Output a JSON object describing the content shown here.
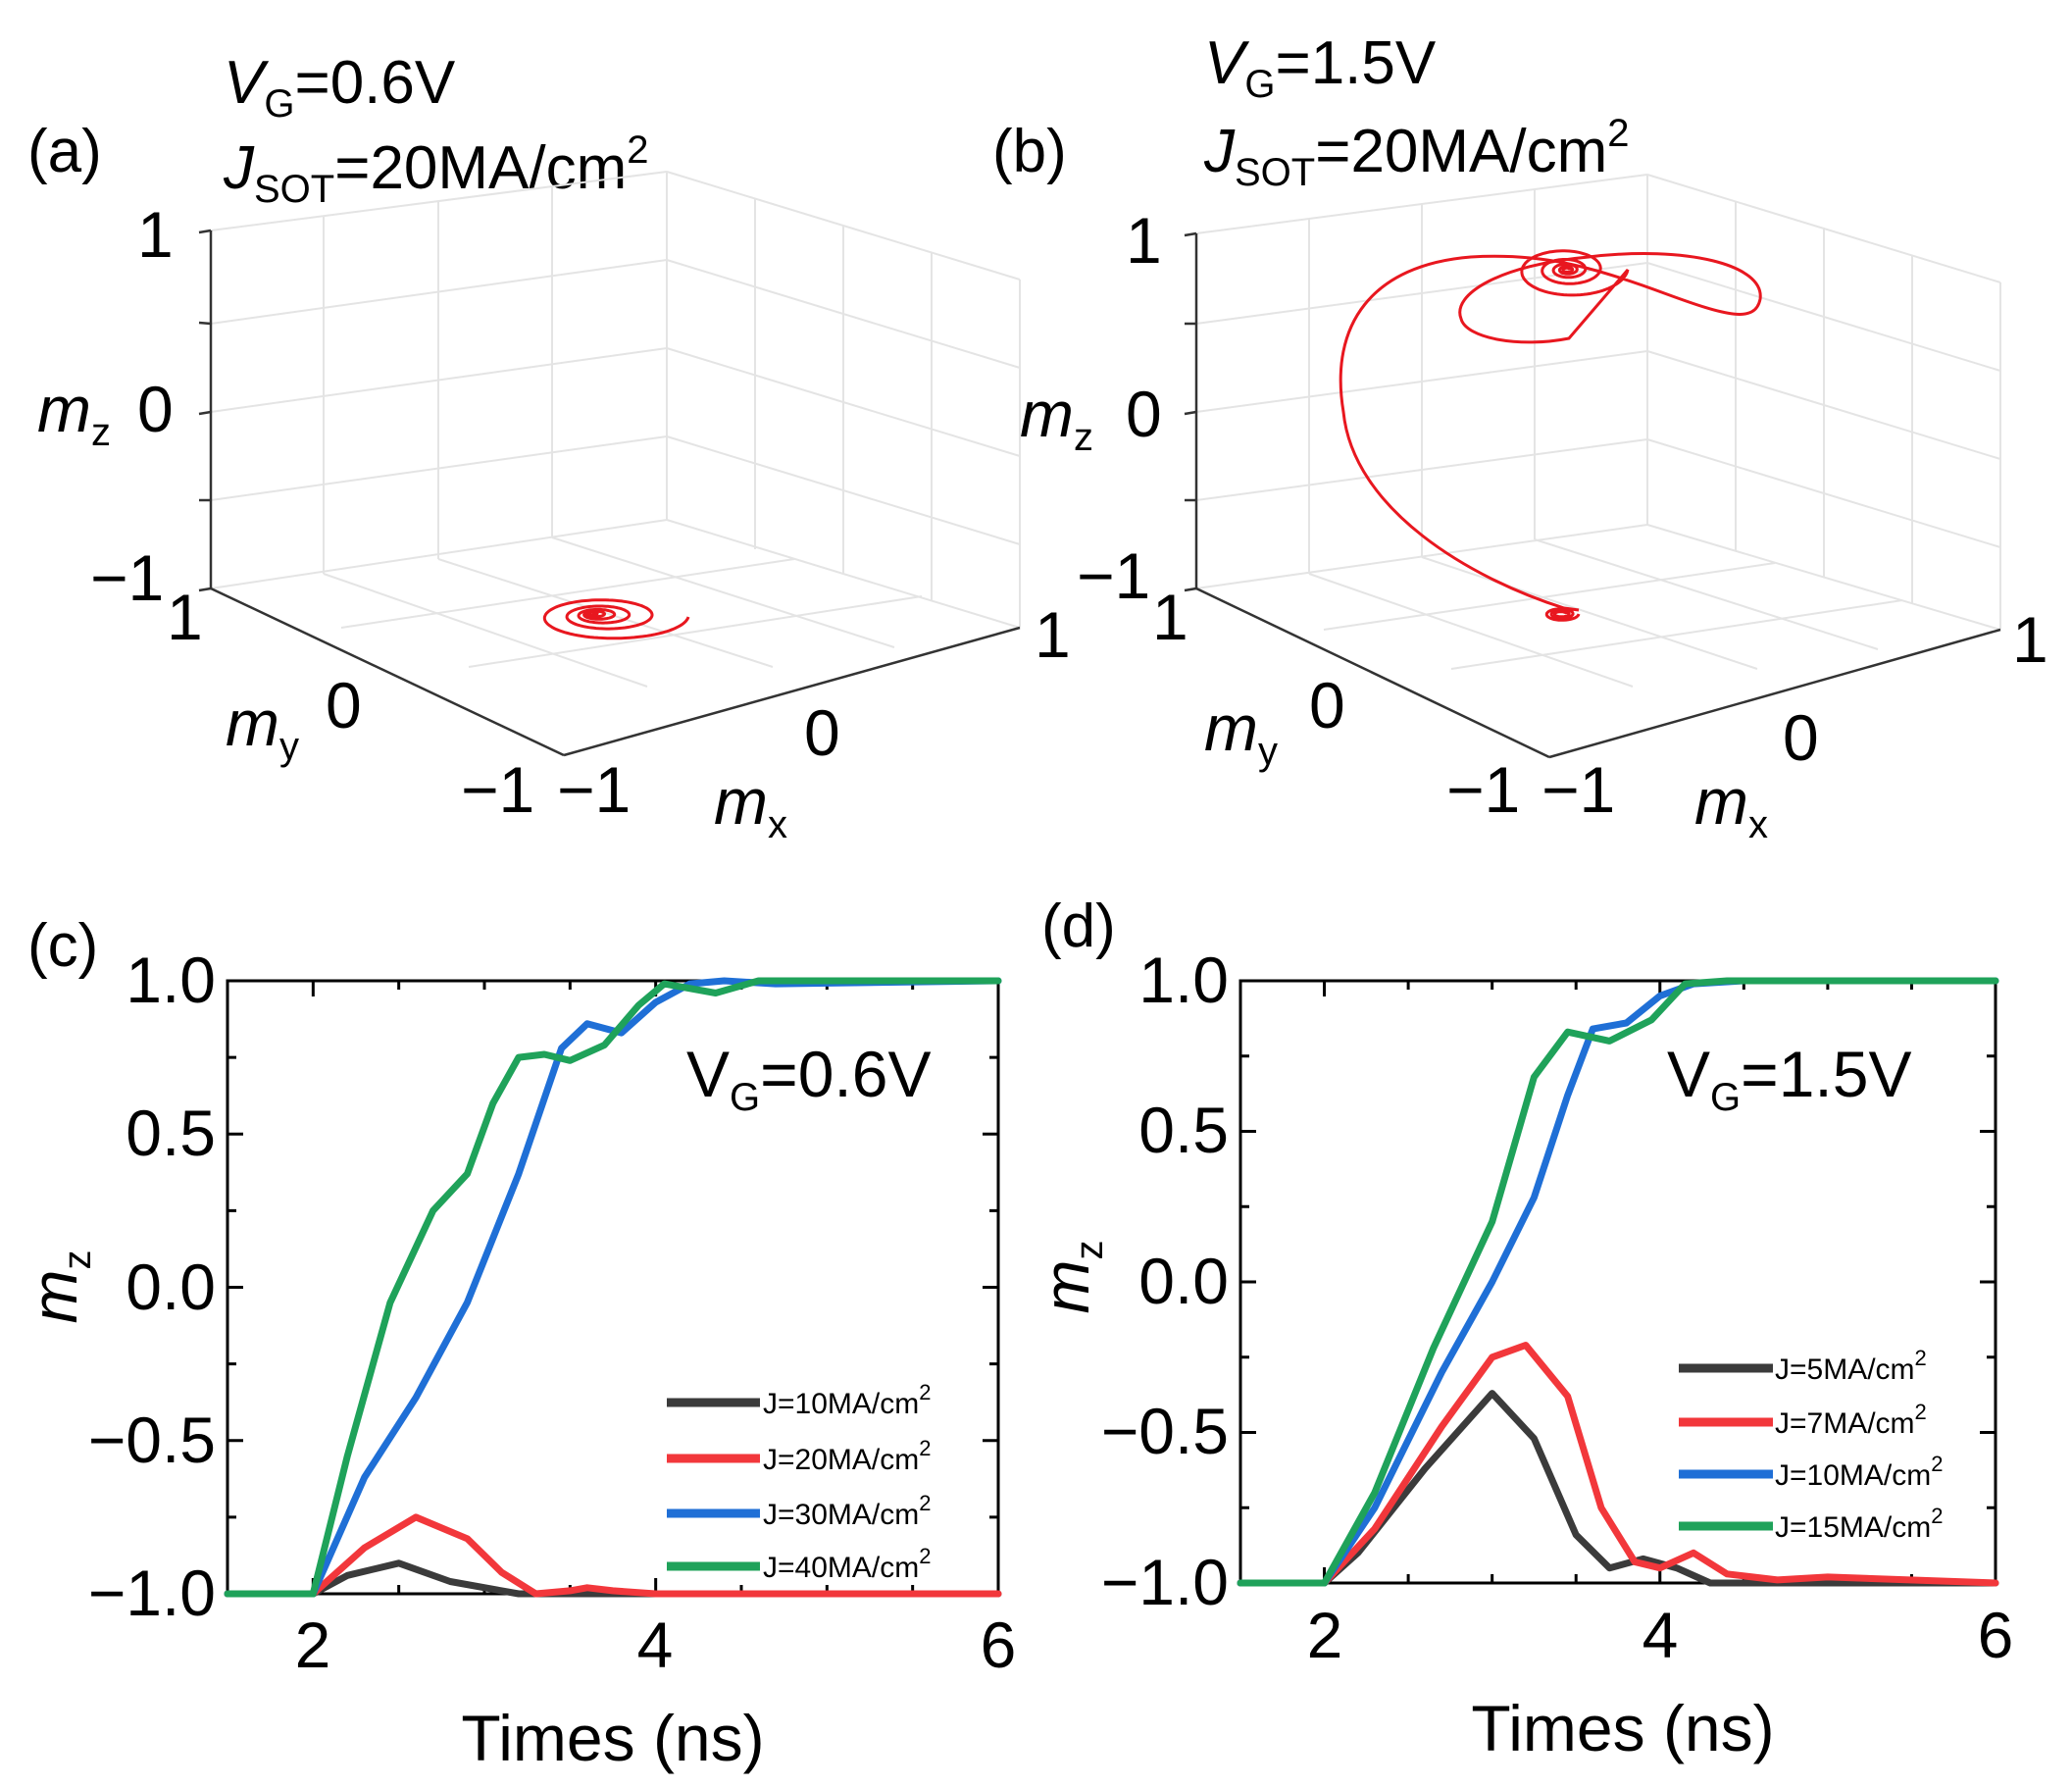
{
  "chart_data": [
    {
      "id": "a",
      "type": "line3d",
      "panel_label": "(a)",
      "title_vg": {
        "main": "V",
        "sub": "G",
        "rest": "=0.6V"
      },
      "title_j": {
        "main": "J",
        "sub": "SOT",
        "rest": "=20MA/cm",
        "sup": "2"
      },
      "axes": {
        "x": {
          "label_main": "m",
          "label_sub": "x",
          "ticks": [
            "-1",
            "0",
            "1"
          ],
          "range": [
            -1,
            1
          ]
        },
        "y": {
          "label_main": "m",
          "label_sub": "y",
          "ticks": [
            "-1",
            "0",
            "1"
          ],
          "range": [
            -1,
            1
          ]
        },
        "z": {
          "label_main": "m",
          "label_sub": "z",
          "ticks": [
            "-1",
            "0",
            "1"
          ],
          "range": [
            -1,
            1
          ]
        }
      },
      "trajectory": {
        "color": "#e8171f",
        "description_values": {
          "start_mz": -1,
          "end_mz": -1,
          "max_radius": 0.35
        }
      }
    },
    {
      "id": "b",
      "type": "line3d",
      "panel_label": "(b)",
      "title_vg": {
        "main": "V",
        "sub": "G",
        "rest": "=1.5V"
      },
      "title_j": {
        "main": "J",
        "sub": "SOT",
        "rest": "=20MA/cm",
        "sup": "2"
      },
      "axes": {
        "x": {
          "label_main": "m",
          "label_sub": "x",
          "ticks": [
            "-1",
            "0",
            "1"
          ],
          "range": [
            -1,
            1
          ]
        },
        "y": {
          "label_main": "m",
          "label_sub": "y",
          "ticks": [
            "-1",
            "0",
            "1"
          ],
          "range": [
            -1,
            1
          ]
        },
        "z": {
          "label_main": "m",
          "label_sub": "z",
          "ticks": [
            "-1",
            "0",
            "1"
          ],
          "range": [
            -1,
            1
          ]
        }
      },
      "trajectory": {
        "color": "#e8171f",
        "description_values": {
          "start_mz": -1,
          "end_mz": 1
        }
      }
    },
    {
      "id": "c",
      "type": "line",
      "panel_label": "(c)",
      "annotation": {
        "main": "V",
        "sub": "G",
        "rest": "=0.6V"
      },
      "xlabel": "Times (ns)",
      "ylabel": {
        "main": "m",
        "sub": "z"
      },
      "xlim": [
        1.5,
        6
      ],
      "ylim": [
        -1,
        1
      ],
      "xticks": [
        2,
        4,
        6
      ],
      "xtick_labels": [
        "2",
        "4",
        "6"
      ],
      "yticks": [
        1,
        0.5,
        0,
        -0.5,
        -1
      ],
      "ytick_labels": [
        "1.0",
        "0.5",
        "0.0",
        "−0.5",
        "−1.0"
      ],
      "legend_position": "lower-right",
      "series": [
        {
          "name": "J=10MA/cm",
          "sup": "2",
          "color": "#3b3b3b",
          "x": [
            1.5,
            2.0,
            2.2,
            2.5,
            2.8,
            3.2,
            3.6,
            4.0,
            6.0
          ],
          "y": [
            -1.0,
            -1.0,
            -0.94,
            -0.9,
            -0.96,
            -1.0,
            -1.0,
            -1.0,
            -1.0
          ]
        },
        {
          "name": "J=20MA/cm",
          "sup": "2",
          "color": "#f2373b",
          "x": [
            1.5,
            2.0,
            2.3,
            2.6,
            2.9,
            3.1,
            3.3,
            3.5,
            3.6,
            3.75,
            4.0,
            6.0
          ],
          "y": [
            -1.0,
            -1.0,
            -0.85,
            -0.75,
            -0.82,
            -0.93,
            -1.0,
            -0.99,
            -0.98,
            -0.99,
            -1.0,
            -1.0
          ]
        },
        {
          "name": "J=30MA/cm",
          "sup": "2",
          "color": "#1f6fd6",
          "x": [
            1.5,
            2.0,
            2.3,
            2.6,
            2.9,
            3.2,
            3.45,
            3.6,
            3.8,
            4.0,
            4.2,
            4.4,
            4.7,
            6.0
          ],
          "y": [
            -1.0,
            -1.0,
            -0.62,
            -0.36,
            -0.05,
            0.37,
            0.78,
            0.86,
            0.83,
            0.93,
            0.99,
            1.0,
            0.99,
            1.0
          ]
        },
        {
          "name": "J=40MA/cm",
          "sup": "2",
          "color": "#1fa25a",
          "x": [
            1.5,
            2.0,
            2.2,
            2.45,
            2.7,
            2.9,
            3.05,
            3.2,
            3.35,
            3.5,
            3.7,
            3.9,
            4.05,
            4.35,
            4.6,
            6.0
          ],
          "y": [
            -1.0,
            -1.0,
            -0.55,
            -0.05,
            0.25,
            0.37,
            0.6,
            0.75,
            0.76,
            0.74,
            0.79,
            0.92,
            0.99,
            0.96,
            1.0,
            1.0
          ]
        }
      ]
    },
    {
      "id": "d",
      "type": "line",
      "panel_label": "(d)",
      "annotation": {
        "main": "V",
        "sub": "G",
        "rest": "=1.5V"
      },
      "xlabel": "Times (ns)",
      "ylabel": {
        "main": "m",
        "sub": "z"
      },
      "xlim": [
        1.5,
        6
      ],
      "ylim": [
        -1,
        1
      ],
      "xticks": [
        2,
        4,
        6
      ],
      "xtick_labels": [
        "2",
        "4",
        "6"
      ],
      "yticks": [
        1,
        0.5,
        0,
        -0.5,
        -1
      ],
      "ytick_labels": [
        "1.0",
        "0.5",
        "0.0",
        "−0.5",
        "−1.0"
      ],
      "legend_position": "lower-right",
      "series": [
        {
          "name": "J=5MA/cm",
          "sup": "2",
          "color": "#3b3b3b",
          "x": [
            1.5,
            2.0,
            2.2,
            2.6,
            3.0,
            3.25,
            3.5,
            3.7,
            3.9,
            4.1,
            4.3,
            6.0
          ],
          "y": [
            -1.0,
            -1.0,
            -0.9,
            -0.62,
            -0.37,
            -0.52,
            -0.84,
            -0.95,
            -0.92,
            -0.95,
            -1.0,
            -1.0
          ]
        },
        {
          "name": "J=7MA/cm",
          "sup": "2",
          "color": "#f2373b",
          "x": [
            1.5,
            2.0,
            2.3,
            2.7,
            3.0,
            3.2,
            3.45,
            3.65,
            3.85,
            4.0,
            4.2,
            4.4,
            4.7,
            5.0,
            6.0
          ],
          "y": [
            -1.0,
            -1.0,
            -0.82,
            -0.48,
            -0.25,
            -0.21,
            -0.38,
            -0.75,
            -0.93,
            -0.95,
            -0.9,
            -0.97,
            -0.99,
            -0.98,
            -1.0
          ]
        },
        {
          "name": "J=10MA/cm",
          "sup": "2",
          "color": "#1f6fd6",
          "x": [
            1.5,
            2.0,
            2.3,
            2.7,
            3.0,
            3.25,
            3.45,
            3.6,
            3.8,
            4.0,
            4.2,
            4.5,
            6.0
          ],
          "y": [
            -1.0,
            -1.0,
            -0.75,
            -0.3,
            0.0,
            0.28,
            0.62,
            0.84,
            0.86,
            0.95,
            0.99,
            1.0,
            1.0
          ]
        },
        {
          "name": "J=15MA/cm",
          "sup": "2",
          "color": "#1fa25a",
          "x": [
            1.5,
            2.0,
            2.3,
            2.65,
            3.0,
            3.25,
            3.45,
            3.7,
            3.95,
            4.15,
            4.4,
            6.0
          ],
          "y": [
            -1.0,
            -1.0,
            -0.7,
            -0.22,
            0.2,
            0.68,
            0.83,
            0.8,
            0.87,
            0.99,
            1.0,
            1.0
          ]
        }
      ]
    }
  ]
}
